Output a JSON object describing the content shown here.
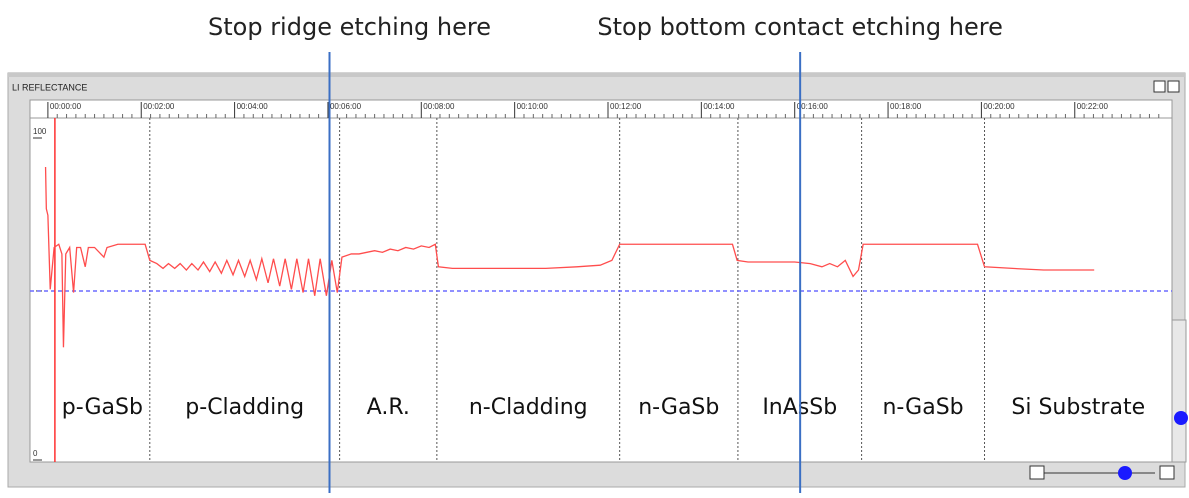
{
  "window_title": "LI REFLECTANCE",
  "annotations": [
    {
      "text": "Stop ridge etching here",
      "x": 362
    },
    {
      "text": "Stop bottom contact etching here",
      "x": 967
    }
  ],
  "chart_data": {
    "type": "line",
    "xlim": [
      -23,
      1445
    ],
    "ylim": [
      0,
      100
    ],
    "yticks": [
      0,
      100
    ],
    "xticks": [
      {
        "value": 0,
        "label": "00:00:00"
      },
      {
        "value": 120,
        "label": "00:02:00"
      },
      {
        "value": 240,
        "label": "00:04:00"
      },
      {
        "value": 360,
        "label": "00:06:00"
      },
      {
        "value": 480,
        "label": "00:08:00"
      },
      {
        "value": 600,
        "label": "00:10:00"
      },
      {
        "value": 720,
        "label": "00:12:00"
      },
      {
        "value": 840,
        "label": "00:14:00"
      },
      {
        "value": 960,
        "label": "00:16:00"
      },
      {
        "value": 1080,
        "label": "00:18:00"
      },
      {
        "value": 1200,
        "label": "00:20:00"
      },
      {
        "value": 1320,
        "label": "00:22:00"
      }
    ],
    "cursor": 9,
    "baseline": 52.5,
    "baseline_color": "#6b6bff",
    "layers": [
      {
        "label": "p-GaSb",
        "end": 131
      },
      {
        "label": "p-Cladding",
        "end": 375
      },
      {
        "label": "A.R.",
        "end": 500
      },
      {
        "label": "n-Cladding",
        "end": 735
      },
      {
        "label": "n-GaSb",
        "end": 887
      },
      {
        "label": "InAsSb",
        "end": 1046
      },
      {
        "label": "n-GaSb",
        "end": 1204
      },
      {
        "label": "Si Substrate",
        "end": 1445
      }
    ],
    "series": [
      {
        "color": "#ff4d4d",
        "x": [
          -3,
          -2,
          0,
          3,
          8,
          14,
          18,
          20,
          23,
          28,
          33,
          37,
          42,
          48,
          52,
          60,
          72,
          76,
          90,
          110,
          125,
          131,
          140,
          148,
          155,
          163,
          170,
          178,
          185,
          193,
          200,
          208,
          215,
          223,
          230,
          238,
          245,
          253,
          260,
          268,
          275,
          283,
          290,
          298,
          305,
          313,
          320,
          328,
          335,
          343,
          350,
          358,
          365,
          372,
          378,
          390,
          400,
          410,
          420,
          430,
          440,
          450,
          460,
          470,
          480,
          490,
          498,
          502,
          520,
          560,
          600,
          640,
          680,
          710,
          725,
          735,
          760,
          800,
          840,
          880,
          886,
          900,
          930,
          960,
          980,
          995,
          1005,
          1015,
          1025,
          1035,
          1042,
          1048,
          1080,
          1120,
          1160,
          1195,
          1204,
          1240,
          1280,
          1320,
          1345
        ],
        "values": [
          91,
          78,
          76,
          53,
          66,
          67,
          64,
          35,
          64,
          66,
          52,
          66,
          66,
          60,
          66,
          66,
          63,
          66,
          67,
          67,
          67,
          62,
          61,
          59.5,
          61,
          59.5,
          61,
          59,
          61,
          59,
          61.5,
          58.5,
          61.5,
          58,
          62,
          57.5,
          62,
          57,
          62,
          56,
          62.5,
          55,
          62.5,
          54,
          62.5,
          53,
          62.5,
          52,
          62.5,
          51,
          62.5,
          51,
          62,
          52,
          63,
          64,
          64,
          64.5,
          65,
          64.5,
          65.5,
          65,
          66,
          65.5,
          66.5,
          66,
          67,
          60,
          59.5,
          59.5,
          59.5,
          59.5,
          60,
          60.5,
          62,
          67,
          67,
          67,
          67,
          67,
          62,
          61.5,
          61.5,
          61.5,
          61,
          60,
          61,
          60,
          62,
          57,
          59,
          67,
          67,
          67,
          67,
          67,
          60,
          59.5,
          59,
          59,
          59
        ]
      }
    ]
  }
}
